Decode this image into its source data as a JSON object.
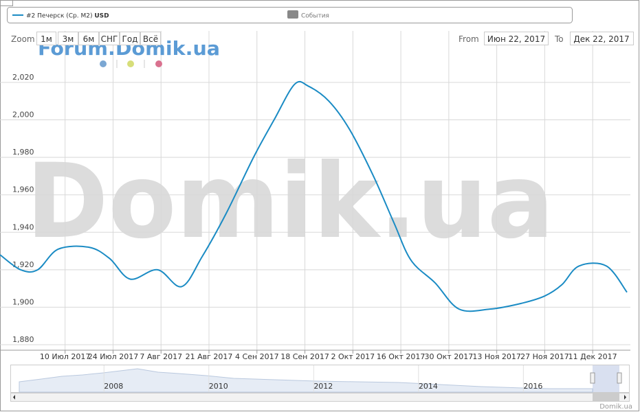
{
  "chart_data": {
    "type": "line",
    "x": [
      "2017-06-21",
      "2017-06-27",
      "2017-07-02",
      "2017-07-08",
      "2017-07-17",
      "2017-07-23",
      "2017-07-29",
      "2017-08-06",
      "2017-08-13",
      "2017-08-19",
      "2017-08-26",
      "2017-09-03",
      "2017-09-09",
      "2017-09-15",
      "2017-09-19",
      "2017-09-25",
      "2017-10-01",
      "2017-10-08",
      "2017-10-14",
      "2017-10-19",
      "2017-10-26",
      "2017-11-02",
      "2017-11-11",
      "2017-11-20",
      "2017-11-27",
      "2017-12-02",
      "2017-12-07",
      "2017-12-15",
      "2017-12-21"
    ],
    "series": [
      {
        "name": "#2 Печерск (Ср. M2)",
        "color": "#1a8bc4",
        "values": [
          1928,
          1920,
          1920,
          1931,
          1932,
          1926,
          1915,
          1920,
          1911,
          1927,
          1950,
          1980,
          2000,
          2019,
          2018,
          2010,
          1995,
          1970,
          1945,
          1925,
          1913,
          1899,
          1899,
          1902,
          1906,
          1912,
          1922,
          1922,
          1908
        ]
      }
    ],
    "unit": "USD",
    "events_label": "События",
    "xlim": [
      "2017-06-21",
      "2017-12-22"
    ],
    "xticks": [
      {
        "value": "2017-07-10",
        "label": "10 Июл 2017"
      },
      {
        "value": "2017-07-24",
        "label": "24 Июл 2017"
      },
      {
        "value": "2017-08-07",
        "label": "7 Авг 2017"
      },
      {
        "value": "2017-08-21",
        "label": "21 Авг 2017"
      },
      {
        "value": "2017-09-04",
        "label": "4 Сен 2017"
      },
      {
        "value": "2017-09-18",
        "label": "18 Сен 2017"
      },
      {
        "value": "2017-10-02",
        "label": "2 Окт 2017"
      },
      {
        "value": "2017-10-16",
        "label": "16 Окт 2017"
      },
      {
        "value": "2017-10-30",
        "label": "30 Окт 2017"
      },
      {
        "value": "2017-11-13",
        "label": "13 Ноя 2017"
      },
      {
        "value": "2017-11-27",
        "label": "27 Ноя 2017"
      },
      {
        "value": "2017-12-11",
        "label": "11 Дек 2017"
      }
    ],
    "ylim": [
      1880,
      2040
    ],
    "yticks": [
      {
        "value": 1880,
        "label": "1,880"
      },
      {
        "value": 1900,
        "label": "1,900"
      },
      {
        "value": 1920,
        "label": "1,920"
      },
      {
        "value": 1940,
        "label": "1,940"
      },
      {
        "value": 1960,
        "label": "1,960"
      },
      {
        "value": 1980,
        "label": "1,980"
      },
      {
        "value": 2000,
        "label": "2,000"
      },
      {
        "value": 2020,
        "label": "2,020"
      }
    ],
    "grid": true
  },
  "ui": {
    "zoom_label": "Zoom",
    "zoom_buttons": [
      "1м",
      "3м",
      "6м",
      "СНГ",
      "Год",
      "Всё"
    ],
    "from_label": "From",
    "from_value": "Июн 22, 2017",
    "to_label": "To",
    "to_value": "Дек 22, 2017",
    "watermark_small": "Forum.Domik.ua",
    "watermark_large": "Domik.ua",
    "credit": "Domik.ua"
  },
  "navigator": {
    "xlim": [
      2006.2,
      2017.7
    ],
    "xticks": [
      2008,
      2010,
      2012,
      2014,
      2016
    ]
  }
}
